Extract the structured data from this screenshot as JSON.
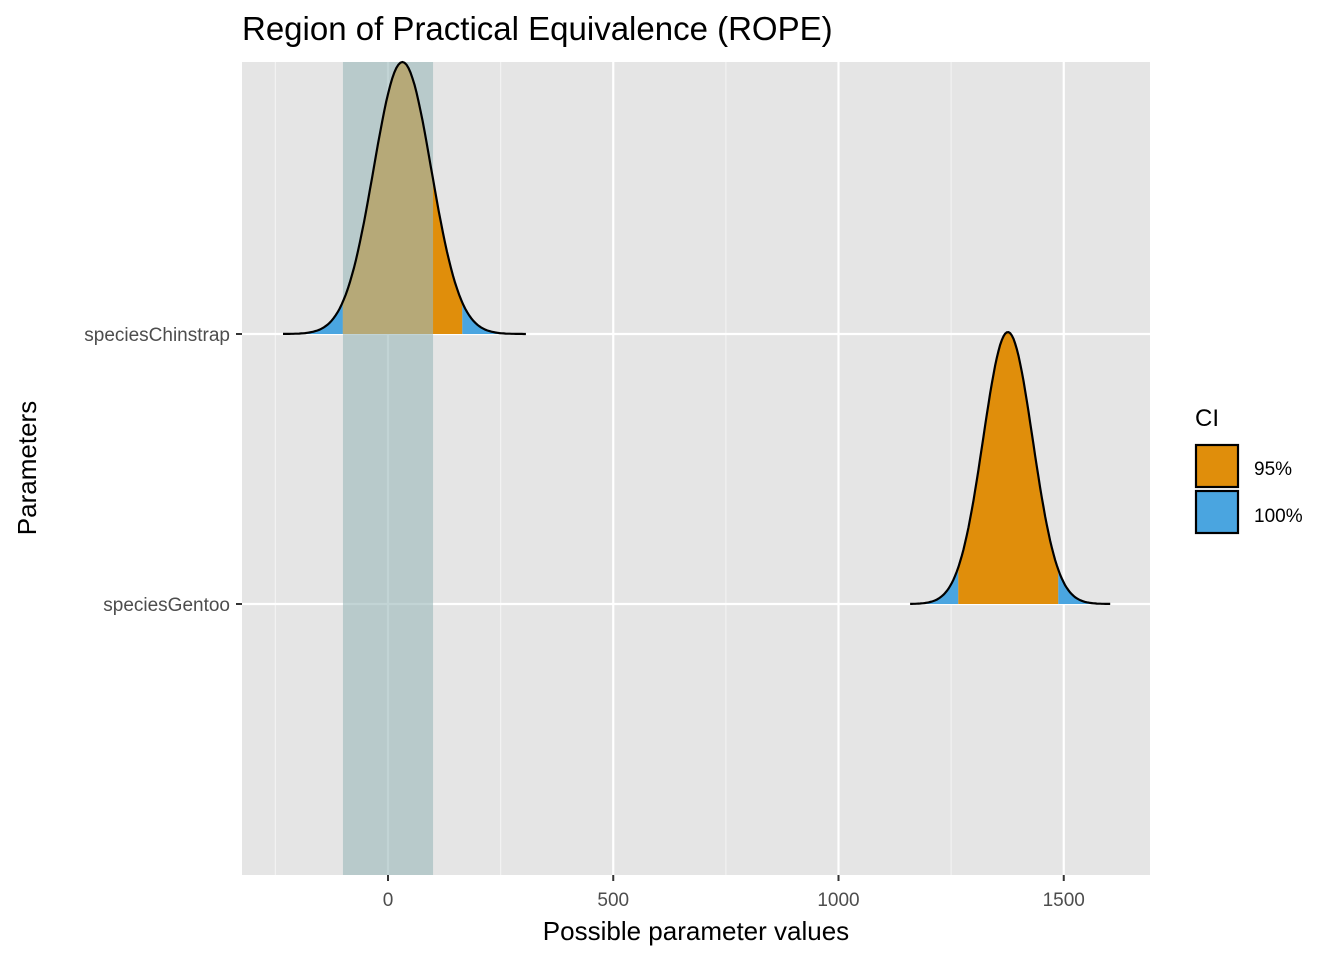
{
  "chart_data": {
    "type": "area",
    "title": "Region of Practical Equivalence (ROPE)",
    "xlabel": "Possible parameter values",
    "ylabel": "Parameters",
    "xlim": [
      -320,
      1700
    ],
    "x_ticks": [
      0,
      500,
      1000,
      1500
    ],
    "x_tick_labels": [
      "0",
      "500",
      "1000",
      "1500"
    ],
    "grid": true,
    "background": "#e5e5e5",
    "rope": {
      "low": -100,
      "high": 100,
      "color": "#9dbabc"
    },
    "legend": {
      "title": "CI",
      "position": "right",
      "items": [
        {
          "label": "95%",
          "color": "#e08e0b"
        },
        {
          "label": "100%",
          "color": "#4aa5e0"
        }
      ]
    },
    "parameters": [
      {
        "name": "speciesChinstrap",
        "mean": 32,
        "sd": 64,
        "ci95": [
          -100,
          165
        ],
        "range": [
          -233,
          306
        ]
      },
      {
        "name": "speciesGentoo",
        "mean": 1376,
        "sd": 55,
        "ci95": [
          1266,
          1488
        ],
        "range": [
          1159,
          1603
        ]
      }
    ]
  }
}
